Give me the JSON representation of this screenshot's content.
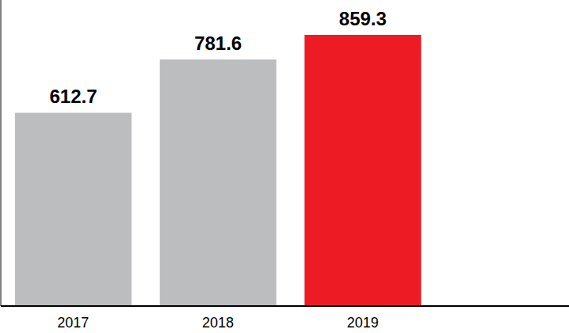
{
  "chart_data": {
    "type": "bar",
    "categories": [
      "2017",
      "2018",
      "2019"
    ],
    "values": [
      612.7,
      781.6,
      859.3
    ],
    "colors": [
      "#bcbdbf",
      "#bcbdbf",
      "#ed1c24"
    ],
    "ylim": [
      0,
      970
    ],
    "data_labels": true,
    "tick_labels": "x"
  }
}
